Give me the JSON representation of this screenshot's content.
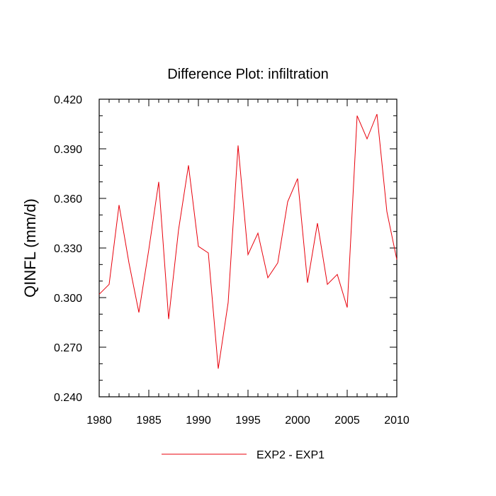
{
  "chart_data": {
    "type": "line",
    "title": "Difference Plot: infiltration",
    "xlabel": "",
    "ylabel": "QINFL  (mm/d)",
    "xlim": [
      1980,
      2010
    ],
    "ylim": [
      0.24,
      0.42
    ],
    "xticks": [
      1980,
      1985,
      1990,
      1995,
      2000,
      2005,
      2010
    ],
    "xtick_labels": [
      "1980",
      "1985",
      "1990",
      "1995",
      "2000",
      "2005",
      "2010"
    ],
    "yticks": [
      0.24,
      0.27,
      0.3,
      0.33,
      0.36,
      0.39,
      0.42
    ],
    "ytick_labels": [
      "0.240",
      "0.270",
      "0.300",
      "0.330",
      "0.360",
      "0.390",
      "0.420"
    ],
    "grid": false,
    "legend_position": "bottom-center",
    "series": [
      {
        "name": "EXP2 - EXP1",
        "color": "#e8000b",
        "x": [
          1980,
          1981,
          1982,
          1983,
          1984,
          1985,
          1986,
          1987,
          1988,
          1989,
          1990,
          1991,
          1992,
          1993,
          1994,
          1995,
          1996,
          1997,
          1998,
          1999,
          2000,
          2001,
          2002,
          2003,
          2004,
          2005,
          2006,
          2007,
          2008,
          2009,
          2010
        ],
        "values": [
          0.302,
          0.308,
          0.356,
          0.321,
          0.291,
          0.329,
          0.37,
          0.287,
          0.341,
          0.38,
          0.331,
          0.327,
          0.257,
          0.297,
          0.392,
          0.326,
          0.339,
          0.312,
          0.321,
          0.358,
          0.372,
          0.309,
          0.345,
          0.308,
          0.314,
          0.294,
          0.41,
          0.396,
          0.411,
          0.352,
          0.323
        ]
      }
    ]
  }
}
